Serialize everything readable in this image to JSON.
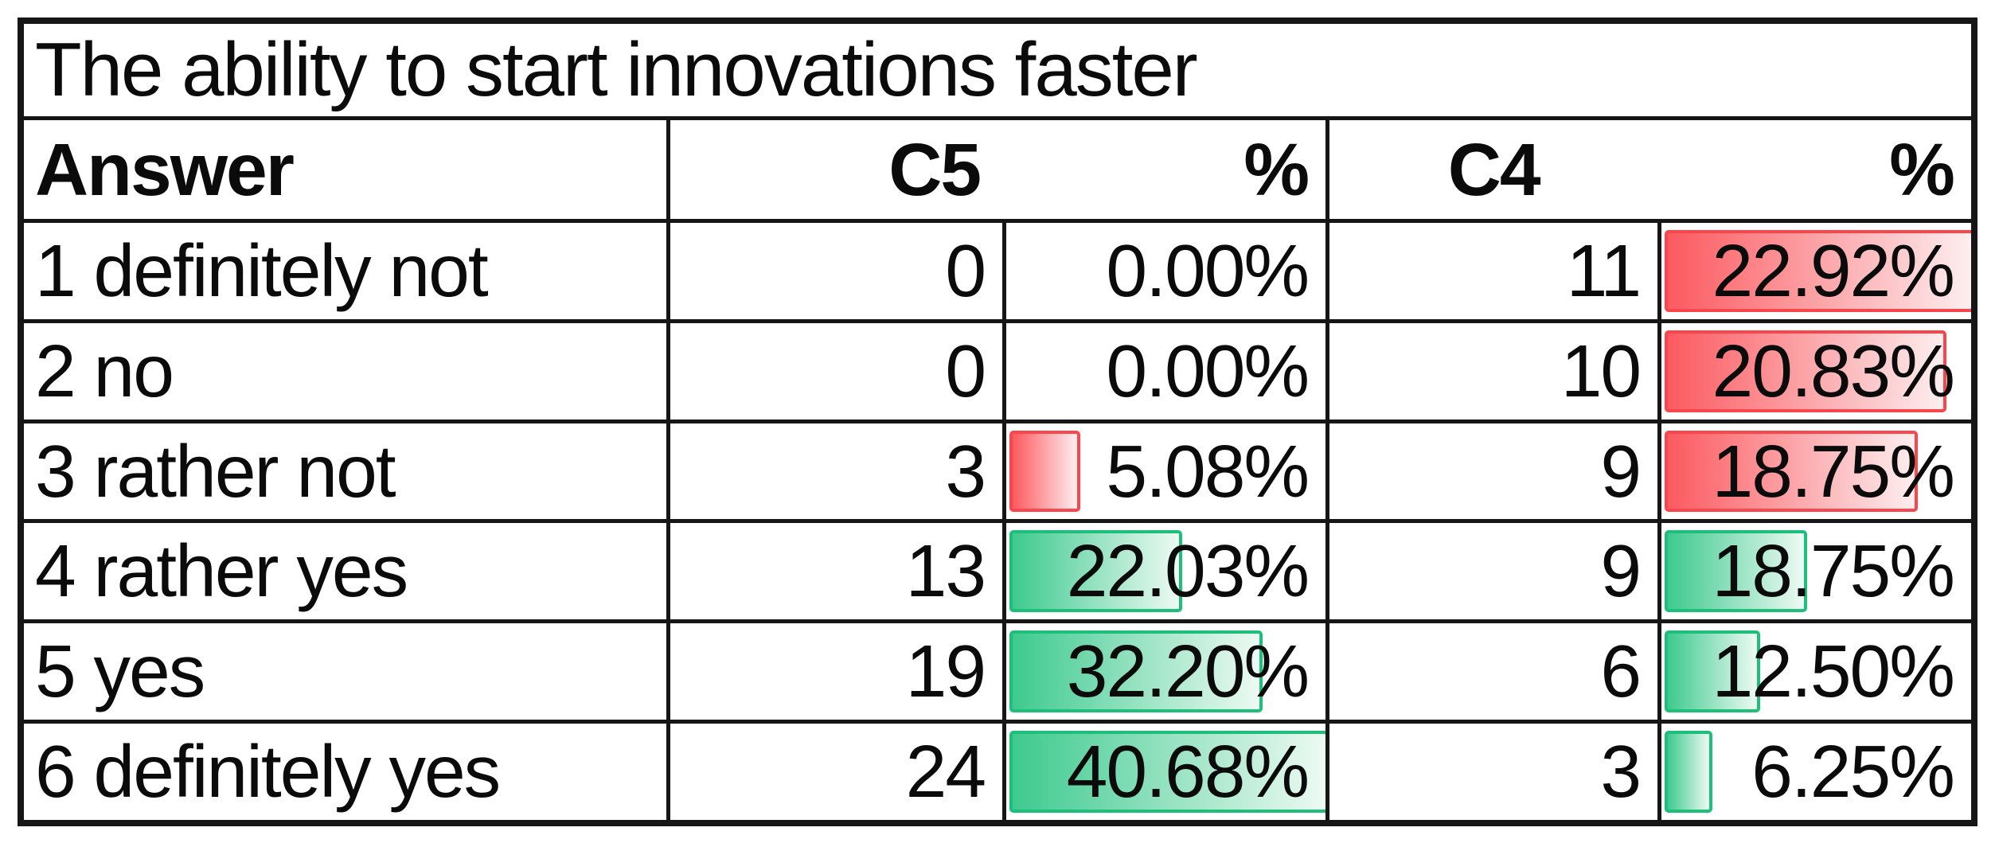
{
  "title": "The ability to start innovations faster",
  "headers": {
    "answer": "Answer",
    "c5": "C5",
    "c5_pct": "%",
    "c4": "C4",
    "c4_pct": "%"
  },
  "rows": [
    {
      "answer": "1 definitely not",
      "c5_count": "0",
      "c5_pct": "0.00%",
      "c5_bar": null,
      "c4_count": "11",
      "c4_pct": "22.92%",
      "c4_bar": {
        "color": "red",
        "fraction": 100
      }
    },
    {
      "answer": "2 no",
      "c5_count": "0",
      "c5_pct": "0.00%",
      "c5_bar": null,
      "c4_count": "10",
      "c4_pct": "20.83%",
      "c4_bar": {
        "color": "red",
        "fraction": 90.9
      }
    },
    {
      "answer": "3 rather not",
      "c5_count": "3",
      "c5_pct": "5.08%",
      "c5_bar": {
        "color": "red",
        "fraction": 22.2
      },
      "c4_count": "9",
      "c4_pct": "18.75%",
      "c4_bar": {
        "color": "red",
        "fraction": 81.8
      }
    },
    {
      "answer": "4 rather yes",
      "c5_count": "13",
      "c5_pct": "22.03%",
      "c5_bar": {
        "color": "green",
        "fraction": 54.2
      },
      "c4_count": "9",
      "c4_pct": "18.75%",
      "c4_bar": {
        "color": "green",
        "fraction": 46.1
      }
    },
    {
      "answer": "5 yes",
      "c5_count": "19",
      "c5_pct": "32.20%",
      "c5_bar": {
        "color": "green",
        "fraction": 79.2
      },
      "c4_count": "6",
      "c4_pct": "12.50%",
      "c4_bar": {
        "color": "green",
        "fraction": 30.7
      }
    },
    {
      "answer": "6 definitely yes",
      "c5_count": "24",
      "c5_pct": "40.68%",
      "c5_bar": {
        "color": "green",
        "fraction": 100
      },
      "c4_count": "3",
      "c4_pct": "6.25%",
      "c4_bar": {
        "color": "green",
        "fraction": 15.4
      }
    }
  ],
  "bar_styles": {
    "red": {
      "border": "#F9454C",
      "fill_start": "#FB5A60",
      "fill_end": "#FDEEEF"
    },
    "green": {
      "border": "#1EBE7B",
      "fill_start": "#3ECA8F",
      "fill_end": "#EDFAF3"
    }
  },
  "table_border_color": "#161616",
  "chart_data": {
    "type": "table",
    "title": "The ability to start innovations faster",
    "categories": [
      "1 definitely not",
      "2 no",
      "3 rather not",
      "4 rather yes",
      "5 yes",
      "6 definitely yes"
    ],
    "series": [
      {
        "name": "C5",
        "values": [
          0,
          0,
          3,
          13,
          19,
          24
        ]
      },
      {
        "name": "C5 %",
        "values": [
          0.0,
          0.0,
          5.08,
          22.03,
          32.2,
          40.68
        ]
      },
      {
        "name": "C4",
        "values": [
          11,
          10,
          9,
          9,
          6,
          3
        ]
      },
      {
        "name": "C4 %",
        "values": [
          22.92,
          20.83,
          18.75,
          18.75,
          12.5,
          6.25
        ]
      }
    ],
    "databar_rules": {
      "negative_answers_color": "red",
      "positive_answers_color": "green",
      "red_scale_max_percent": 22.92,
      "green_scale_max_percent": 40.68,
      "scale_min_percent": 0
    }
  }
}
